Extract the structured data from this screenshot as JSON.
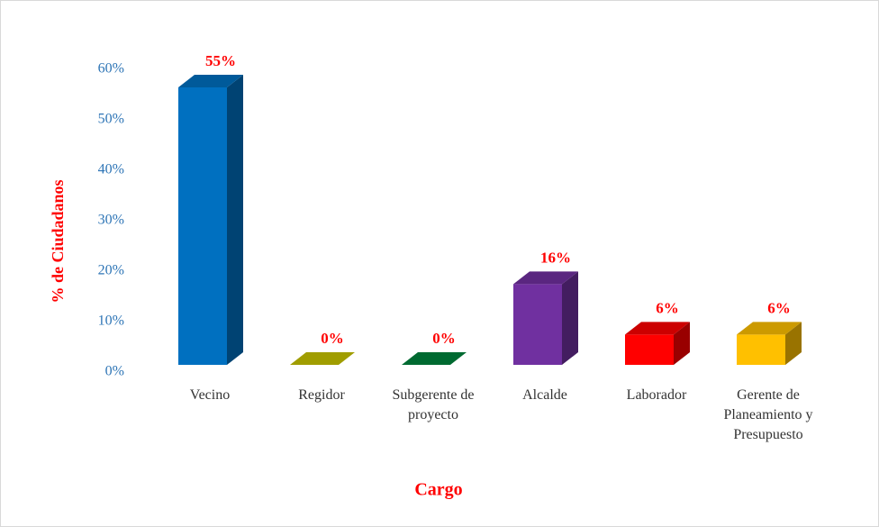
{
  "chart_data": {
    "type": "bar3d",
    "x_label": "Cargo",
    "y_label": "% de Ciudadanos",
    "categories": [
      "Vecino",
      "Regidor",
      "Subgerente de proyecto",
      "Alcalde",
      "Laborador",
      "Gerente de Planeamiento y Presupuesto"
    ],
    "values": [
      55,
      0,
      0,
      16,
      6,
      6
    ],
    "value_labels": [
      "55%",
      "0%",
      "0%",
      "16%",
      "6%",
      "6%"
    ],
    "colors": [
      "#0070c0",
      "#c8c400",
      "#00843d",
      "#7030a0",
      "#ff0000",
      "#ffc000"
    ],
    "ylim": [
      0,
      60
    ],
    "yticks": [
      {
        "value": 0,
        "label": "0%"
      },
      {
        "value": 10,
        "label": "10%"
      },
      {
        "value": 20,
        "label": "20%"
      },
      {
        "value": 30,
        "label": "30%"
      },
      {
        "value": 40,
        "label": "40%"
      },
      {
        "value": 50,
        "label": "50%"
      },
      {
        "value": 60,
        "label": "60%"
      }
    ],
    "grid": false
  }
}
